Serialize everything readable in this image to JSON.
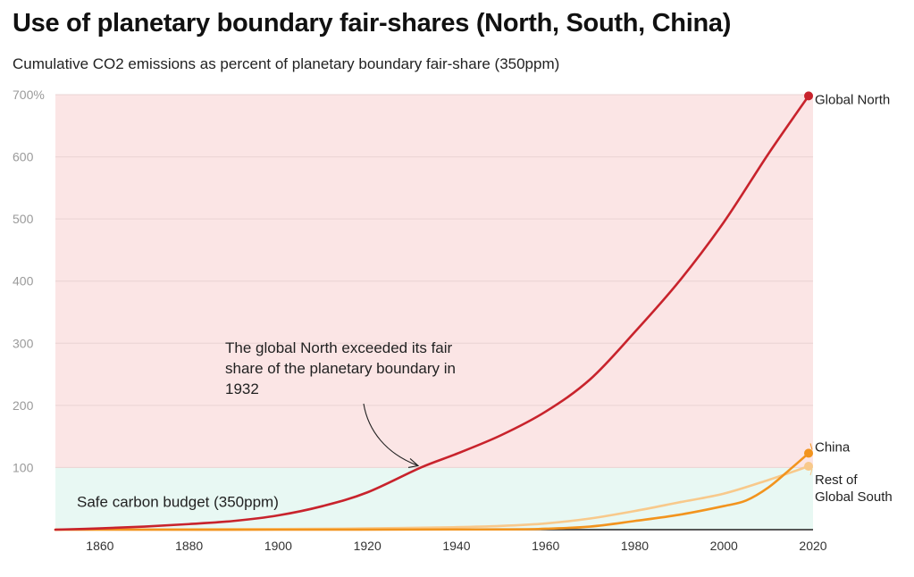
{
  "title": "Use of planetary boundary fair-shares (North, South, China)",
  "subtitle": "Cumulative CO2 emissions as percent of planetary boundary fair-share (350ppm)",
  "chart_data": {
    "type": "line",
    "title": "Use of planetary boundary fair-shares (North, South, China)",
    "subtitle": "Cumulative CO2 emissions as percent of planetary boundary fair-share (350ppm)",
    "xlabel": "",
    "ylabel": "",
    "xlim": [
      1850,
      2020
    ],
    "ylim": [
      0,
      700
    ],
    "x_ticks": [
      1860,
      1880,
      1900,
      1920,
      1940,
      1960,
      1980,
      2000,
      2020
    ],
    "y_ticks": [
      0,
      100,
      200,
      300,
      400,
      500,
      600,
      700
    ],
    "y_tick_labels": [
      "",
      "100",
      "200",
      "300",
      "400",
      "500",
      "600",
      "700%"
    ],
    "grid": "horizontal",
    "legend": "direct labels at line ends",
    "zones": [
      {
        "label": "",
        "from": 100,
        "to": 700,
        "color": "#fbe5e5"
      },
      {
        "label": "Safe carbon budget (350ppm)",
        "from": 0,
        "to": 100,
        "color": "#e8f8f3"
      }
    ],
    "series": [
      {
        "name": "Global North",
        "color": "#c8232c",
        "end_marker": true,
        "points": [
          [
            1850,
            0
          ],
          [
            1860,
            2
          ],
          [
            1870,
            5
          ],
          [
            1880,
            9
          ],
          [
            1890,
            14
          ],
          [
            1900,
            23
          ],
          [
            1910,
            38
          ],
          [
            1920,
            60
          ],
          [
            1932,
            100
          ],
          [
            1940,
            122
          ],
          [
            1950,
            152
          ],
          [
            1960,
            190
          ],
          [
            1970,
            242
          ],
          [
            1980,
            318
          ],
          [
            1990,
            400
          ],
          [
            2000,
            495
          ],
          [
            2010,
            605
          ],
          [
            2019,
            698
          ]
        ]
      },
      {
        "name": "China",
        "color": "#f2941e",
        "end_marker": true,
        "points": [
          [
            1850,
            0
          ],
          [
            1900,
            0
          ],
          [
            1950,
            0.5
          ],
          [
            1960,
            1.5
          ],
          [
            1970,
            5
          ],
          [
            1980,
            14
          ],
          [
            1990,
            24
          ],
          [
            2000,
            38
          ],
          [
            2005,
            47
          ],
          [
            2010,
            68
          ],
          [
            2015,
            98
          ],
          [
            2019,
            123
          ]
        ]
      },
      {
        "name": "Rest of Global South",
        "color": "#f8c98b",
        "end_marker": true,
        "points": [
          [
            1850,
            0
          ],
          [
            1900,
            1
          ],
          [
            1920,
            2
          ],
          [
            1940,
            4
          ],
          [
            1950,
            6
          ],
          [
            1960,
            10
          ],
          [
            1970,
            18
          ],
          [
            1980,
            30
          ],
          [
            1990,
            44
          ],
          [
            2000,
            58
          ],
          [
            2010,
            80
          ],
          [
            2019,
            102
          ]
        ]
      }
    ],
    "annotations": [
      {
        "lines": [
          "The global North exceeded its fair",
          "share of the planetary boundary in",
          "1932"
        ],
        "points_to": [
          1932,
          100
        ]
      }
    ]
  }
}
